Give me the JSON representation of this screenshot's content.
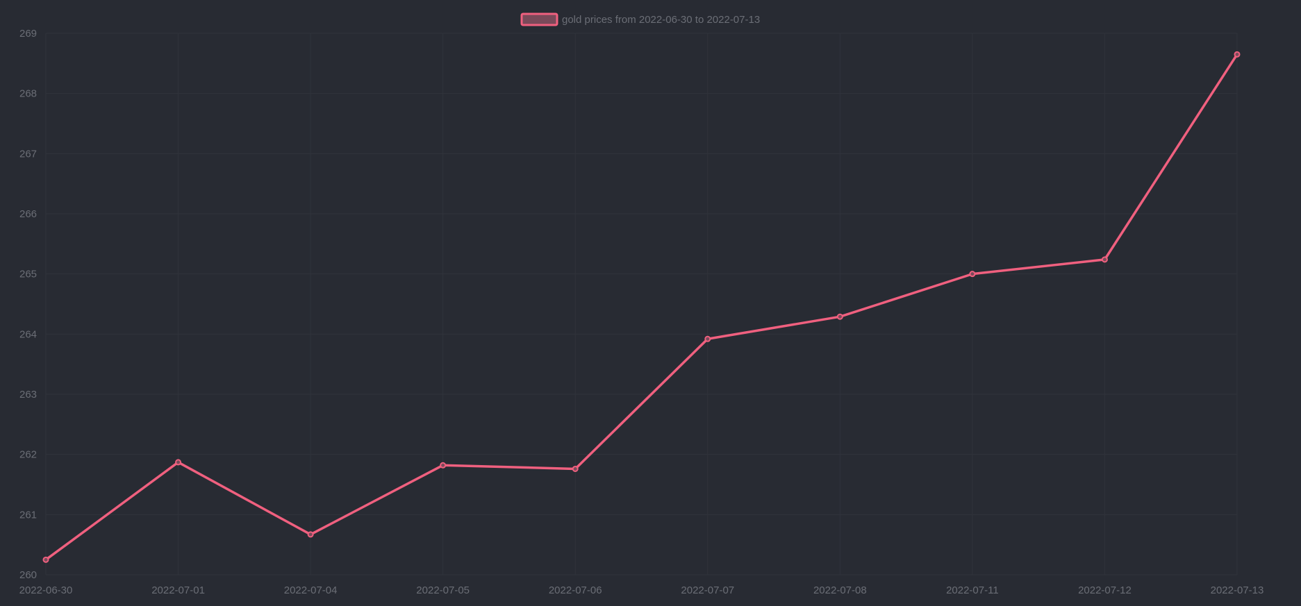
{
  "chart_data": {
    "type": "line",
    "title": "",
    "xlabel": "",
    "ylabel": "",
    "categories": [
      "2022-06-30",
      "2022-07-01",
      "2022-07-04",
      "2022-07-05",
      "2022-07-06",
      "2022-07-07",
      "2022-07-08",
      "2022-07-11",
      "2022-07-12",
      "2022-07-13"
    ],
    "series": [
      {
        "name": "gold prices from 2022-06-30 to 2022-07-13",
        "values": [
          260.25,
          261.87,
          260.67,
          261.82,
          261.76,
          263.92,
          264.29,
          265.0,
          265.24,
          268.65
        ]
      }
    ],
    "ylim": [
      260,
      269
    ],
    "yticks": [
      "269",
      "268",
      "267",
      "266",
      "265",
      "264",
      "263",
      "262",
      "261",
      "260"
    ],
    "grid": true,
    "legend_position": "top-center",
    "colors": {
      "background": "#282b33",
      "series_line": "#f0607f",
      "legend_fill": "#7a4a5a",
      "text": "#6b6e76",
      "grid": "#30333b"
    }
  }
}
